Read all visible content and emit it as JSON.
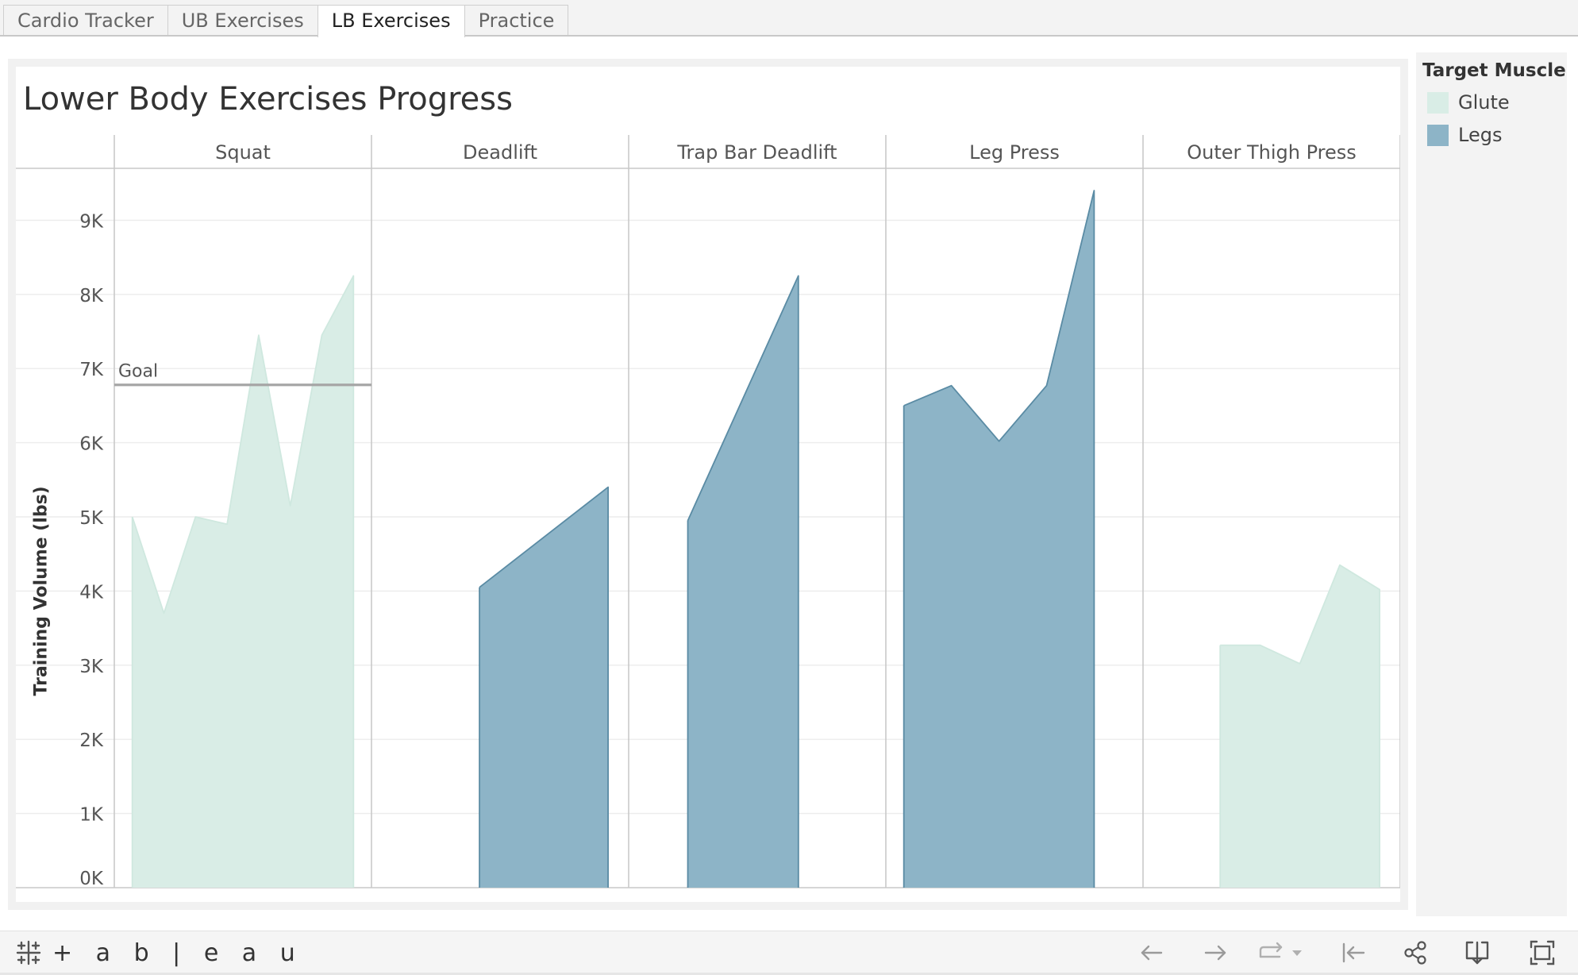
{
  "tabs": [
    {
      "label": "Cardio Tracker",
      "active": false
    },
    {
      "label": "UB Exercises",
      "active": false
    },
    {
      "label": "LB Exercises",
      "active": true
    },
    {
      "label": "Practice",
      "active": false
    }
  ],
  "legend": {
    "title": "Target Muscle",
    "items": [
      {
        "label": "Glute",
        "color": "#d9ede6"
      },
      {
        "label": "Legs",
        "color": "#8db4c7"
      }
    ]
  },
  "toolbar": {
    "logo_text": "+ a b | e a u",
    "buttons": [
      "undo-icon",
      "redo-icon",
      "replay-icon",
      "revert-icon",
      "share-icon",
      "download-icon",
      "fullscreen-icon"
    ]
  },
  "colors": {
    "glute_fill": "#d9ede6",
    "glute_line": "#cfe8df",
    "legs_fill": "#8db4c7",
    "legs_line": "#5a8ba4",
    "goal_line": "#a6a6a6",
    "grid": "#ececec",
    "divider": "#c9c9c9"
  },
  "chart_data": {
    "type": "area",
    "title": "Lower Body Exercises Progress",
    "ylabel": "Training Volume (lbs)",
    "xlabel": "",
    "ylim": [
      0,
      9900
    ],
    "yticks": [
      0,
      1000,
      2000,
      3000,
      4000,
      5000,
      6000,
      7000,
      8000,
      9000
    ],
    "ytick_labels": [
      "0K",
      "1K",
      "2K",
      "3K",
      "4K",
      "5K",
      "6K",
      "7K",
      "8K",
      "9K"
    ],
    "grid": true,
    "legend_placement": "right",
    "reference_line": {
      "label": "Goal",
      "value": 6780,
      "panel": "Squat"
    },
    "panels": [
      {
        "name": "Squat",
        "muscle": "Glute",
        "values": [
          5000,
          3700,
          5000,
          4900,
          7450,
          5150,
          7450,
          8250
        ]
      },
      {
        "name": "Deadlift",
        "muscle": "Legs",
        "values": [
          4050,
          5400
        ]
      },
      {
        "name": "Trap Bar Deadlift",
        "muscle": "Legs",
        "values": [
          4950,
          8250
        ]
      },
      {
        "name": "Leg Press",
        "muscle": "Legs",
        "values": [
          6500,
          6770,
          6020,
          6770,
          9400
        ]
      },
      {
        "name": "Outer Thigh Press",
        "muscle": "Glute",
        "values": [
          3270,
          3270,
          3020,
          4350,
          4020
        ]
      }
    ]
  }
}
